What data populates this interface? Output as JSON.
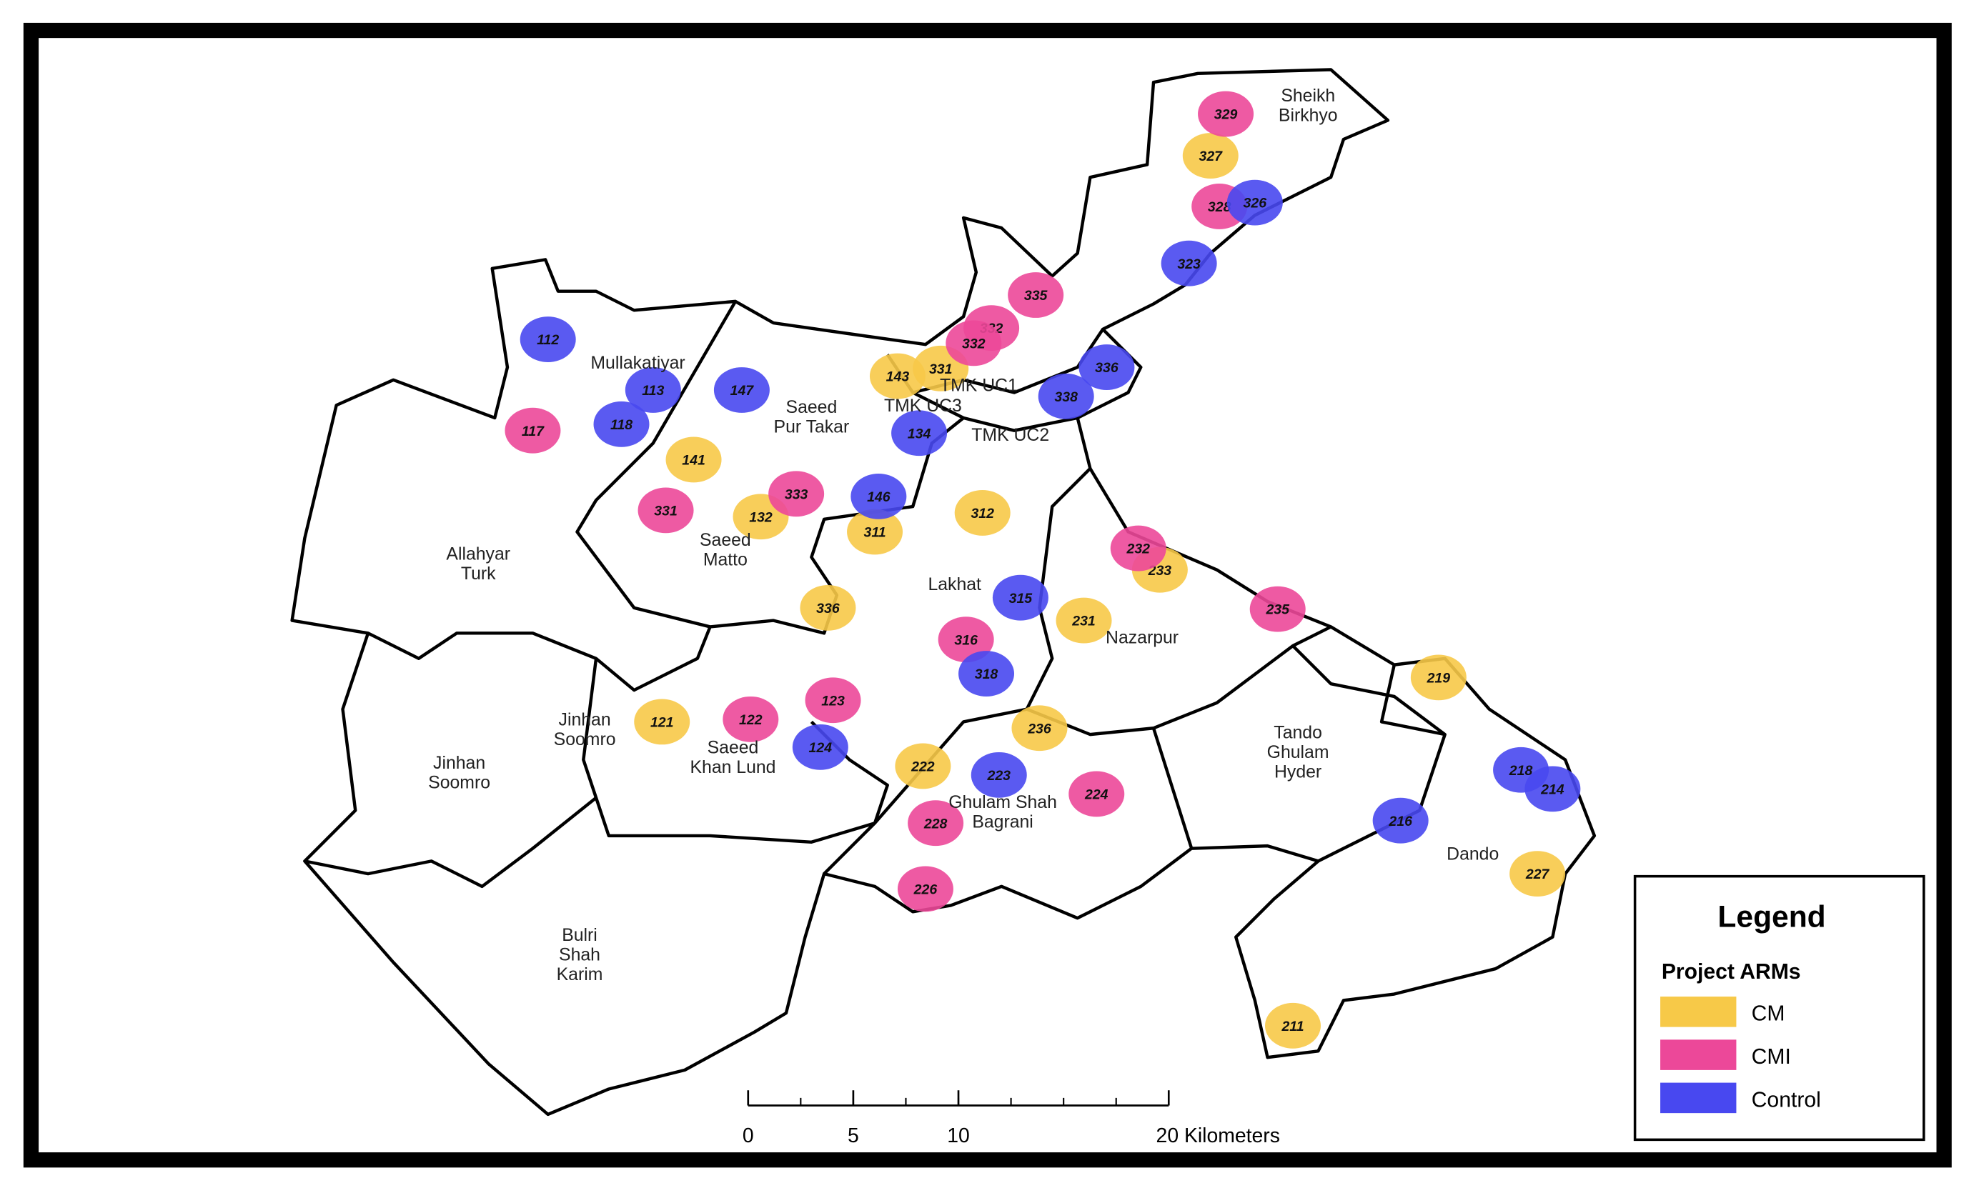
{
  "regions": [
    {
      "lines": [
        "Sheikh",
        "Birkhyo"
      ]
    },
    {
      "lines": [
        "Mullakatiyar"
      ]
    },
    {
      "lines": [
        "Saeed",
        "Pur Takar"
      ]
    },
    {
      "lines": [
        "TMK UC1"
      ]
    },
    {
      "lines": [
        "TMK UC3"
      ]
    },
    {
      "lines": [
        "TMK UC2"
      ]
    },
    {
      "lines": [
        "Allahyar",
        "Turk"
      ]
    },
    {
      "lines": [
        "Saeed",
        "Matto"
      ]
    },
    {
      "lines": [
        "Lakhat"
      ]
    },
    {
      "lines": [
        "Nazarpur"
      ]
    },
    {
      "lines": [
        "Jinhan",
        "Soomro"
      ]
    },
    {
      "lines": [
        "Jinhan",
        "Soomro"
      ]
    },
    {
      "lines": [
        "Saeed",
        "Khan Lund"
      ]
    },
    {
      "lines": [
        "Ghulam Shah",
        "Bagrani"
      ]
    },
    {
      "lines": [
        "Tando",
        "Ghulam",
        "Hyder"
      ]
    },
    {
      "lines": [
        "Dando"
      ]
    },
    {
      "lines": [
        "Bulri",
        "Shah",
        "Karim"
      ]
    }
  ],
  "legend": {
    "title": "Legend",
    "subtitle": "Project ARMs",
    "items": [
      {
        "label": "CM",
        "color": "#f7c948",
        "clusters": [
          "327",
          "143",
          "331",
          "141",
          "132",
          "311",
          "312",
          "233",
          "231",
          "336",
          "121",
          "222",
          "236",
          "219",
          "227",
          "211"
        ]
      },
      {
        "label": "CMI",
        "color": "#ec4899",
        "clusters": [
          "329",
          "328",
          "335",
          "332",
          "332",
          "117",
          "331",
          "333",
          "232",
          "235",
          "316",
          "122",
          "123",
          "224",
          "228",
          "226"
        ]
      },
      {
        "label": "Control",
        "color": "#4848f0",
        "clusters": [
          "326",
          "323",
          "336",
          "338",
          "112",
          "113",
          "118",
          "147",
          "134",
          "146",
          "315",
          "318",
          "124",
          "223",
          "218",
          "214",
          "216"
        ]
      }
    ]
  },
  "scale_bar": {
    "ticks": [
      0,
      5,
      10,
      {
        "value": 20,
        "label": "20 Kilometers"
      }
    ]
  }
}
